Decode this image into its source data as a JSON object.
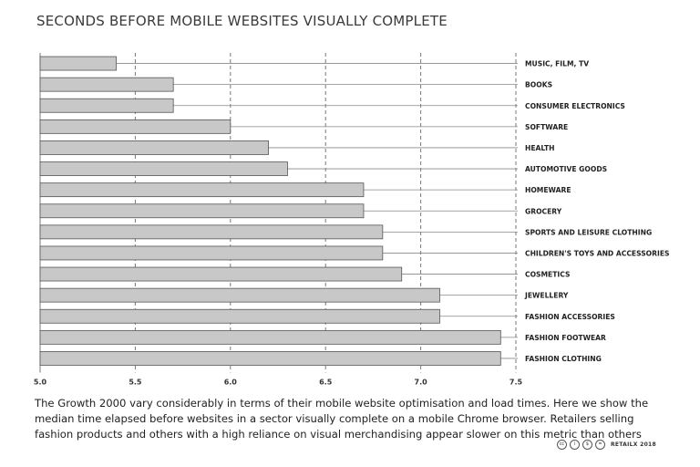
{
  "chart_data": {
    "type": "bar",
    "orientation": "horizontal",
    "title": "SECONDS BEFORE MOBILE WEBSITES VISUALLY COMPLETE",
    "categories": [
      "MUSIC, FILM, TV",
      "BOOKS",
      "CONSUMER ELECTRONICS",
      "SOFTWARE",
      "HEALTH",
      "AUTOMOTIVE GOODS",
      "HOMEWARE",
      "GROCERY",
      "SPORTS AND LEISURE CLOTHING",
      "CHILDREN'S TOYS AND ACCESSORIES",
      "COSMETICS",
      "JEWELLERY",
      "FASHION ACCESSORIES",
      "FASHION FOOTWEAR",
      "FASHION CLOTHING"
    ],
    "values": [
      5.4,
      5.7,
      5.7,
      6.0,
      6.2,
      6.3,
      6.7,
      6.7,
      6.8,
      6.8,
      6.9,
      7.1,
      7.1,
      7.42,
      7.42
    ],
    "xlim": [
      5.0,
      7.5
    ],
    "x_ticks": [
      "5.0",
      "5.5",
      "6.0",
      "6.5",
      "7.0",
      "7.5"
    ],
    "grid": "vertical dashed",
    "legend": "none",
    "bar_color": "#c8c8c8",
    "bar_stroke": "#555555"
  },
  "caption": "The Growth 2000 vary considerably in terms of their mobile website optimisation and load times. Here we show the median time elapsed before websites in a sector visually complete on a mobile Chrome browser. Retailers selling fashion products and others with a high reliance on visual merchandising appear slower on this metric than others",
  "credit": {
    "icons": [
      "cc-icon",
      "by-icon",
      "nc-icon",
      "nd-icon"
    ],
    "text": "RETAILX 2018"
  }
}
